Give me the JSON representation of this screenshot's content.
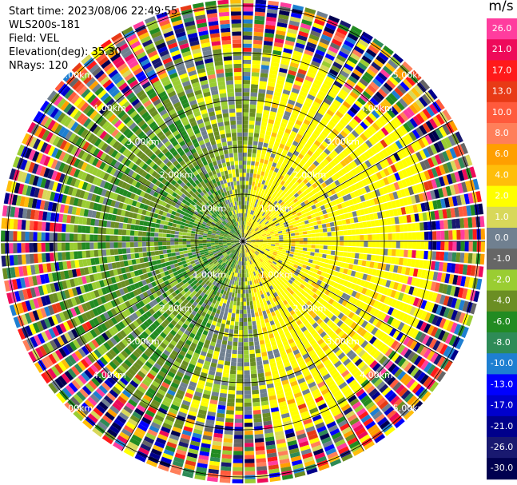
{
  "header": {
    "start_time": "Start time: 2023/08/06 22:49:55",
    "station": "WLS200s-181",
    "field": "Field: VEL",
    "elevation": "Elevation(deg): 35.30",
    "nrays": "NRays: 120"
  },
  "colorbar": {
    "unit": "m/s",
    "ticks": [
      "26.0",
      "21.0",
      "17.0",
      "13.0",
      "10.0",
      "8.0",
      "6.0",
      "4.0",
      "2.0",
      "1.0",
      "0.0",
      "-1.0",
      "-2.0",
      "-4.0",
      "-6.0",
      "-8.0",
      "-10.0",
      "-13.0",
      "-17.0",
      "-21.0",
      "-26.0",
      "-30.0"
    ],
    "colors": [
      "#ff3d9e",
      "#ee0a5a",
      "#ff1a1a",
      "#e83a16",
      "#ff5a3c",
      "#ff7f5a",
      "#ff9f00",
      "#ffbe0a",
      "#ffff00",
      "#d8d85a",
      "#708090",
      "#666666",
      "#9acd32",
      "#6b8e23",
      "#228b22",
      "#2e8b57",
      "#1e7fd1",
      "#0000ff",
      "#0000cd",
      "#00008b",
      "#191970",
      "#000050"
    ]
  },
  "rings": {
    "labels": [
      "1.00km",
      "2.00km",
      "3.00km",
      "4.00km",
      "5.00km"
    ]
  }
}
